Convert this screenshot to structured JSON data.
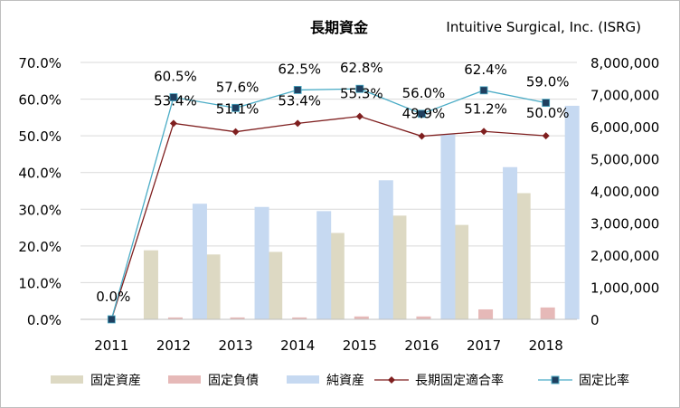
{
  "chart_data": {
    "type": "bar",
    "title": "長期資金",
    "subtitle": "Intuitive Surgical, Inc. (ISRG)",
    "categories": [
      "2011",
      "2012",
      "2013",
      "2014",
      "2015",
      "2016",
      "2017",
      "2018"
    ],
    "series": [
      {
        "name": "固定資産",
        "type": "bar",
        "axis": "right",
        "color": "#ddd9c3",
        "values": [
          0,
          2150000,
          2020000,
          2100000,
          2690000,
          3230000,
          2940000,
          3930000
        ]
      },
      {
        "name": "固定負債",
        "type": "bar",
        "axis": "right",
        "color": "#e6b9b8",
        "values": [
          0,
          60000,
          60000,
          60000,
          90000,
          90000,
          310000,
          370000
        ]
      },
      {
        "name": "純資産",
        "type": "bar",
        "axis": "right",
        "color": "#c6d9f1",
        "values": [
          0,
          3600000,
          3500000,
          3370000,
          4330000,
          5760000,
          4740000,
          6650000
        ]
      },
      {
        "name": "長期固定適合率",
        "type": "line",
        "axis": "left",
        "color": "#7f1f1f",
        "marker": "diamond",
        "values": [
          0.0,
          53.4,
          51.1,
          53.4,
          55.3,
          49.9,
          51.2,
          50.0
        ],
        "labels": [
          "0.0%",
          "53.4%",
          "51.1%",
          "53.4%",
          "55.3%",
          "49.9%",
          "51.2%",
          "50.0%"
        ]
      },
      {
        "name": "固定比率",
        "type": "line",
        "axis": "left",
        "color": "#4bacc6",
        "marker": "square",
        "markerColor": "#1f3f5f",
        "values": [
          0.0,
          60.5,
          57.6,
          62.5,
          62.8,
          56.0,
          62.4,
          59.0
        ],
        "labels": [
          "0.0%",
          "60.5%",
          "57.6%",
          "62.5%",
          "62.8%",
          "56.0%",
          "62.4%",
          "59.0%"
        ]
      }
    ],
    "y_left": {
      "min": 0,
      "max": 70,
      "step": 10,
      "ticks": [
        "0.0%",
        "10.0%",
        "20.0%",
        "30.0%",
        "40.0%",
        "50.0%",
        "60.0%",
        "70.0%"
      ]
    },
    "y_right": {
      "min": 0,
      "max": 8000000,
      "step": 1000000,
      "ticks": [
        "0",
        "1,000,000",
        "2,000,000",
        "3,000,000",
        "4,000,000",
        "5,000,000",
        "6,000,000",
        "7,000,000",
        "8,000,000"
      ]
    },
    "grid": true,
    "legend": "bottom"
  }
}
